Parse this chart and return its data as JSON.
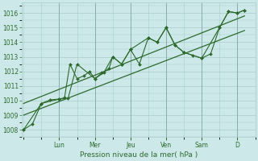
{
  "background_color": "#cce8e8",
  "grid_color": "#aacccc",
  "line_color": "#2d6a2d",
  "xlabel": "Pression niveau de la mer( hPa )",
  "ylim": [
    1007.5,
    1016.7
  ],
  "yticks": [
    1008,
    1009,
    1010,
    1011,
    1012,
    1013,
    1014,
    1015,
    1016
  ],
  "day_labels": [
    "Lun",
    "Mer",
    "Jeu",
    "Ven",
    "Sam",
    "D"
  ],
  "day_x": [
    2,
    4,
    6,
    8,
    10,
    12
  ],
  "xlim": [
    -0.1,
    13.0
  ],
  "line1_x": [
    0,
    0.5,
    1.0,
    1.5,
    2.0,
    2.3,
    2.6,
    3.0,
    3.4,
    3.7,
    4.0,
    4.4,
    4.8,
    5.0,
    5.5,
    6.0,
    6.5,
    7.0,
    7.5,
    8.0,
    8.5,
    9.0,
    9.5,
    10.0,
    10.5,
    11.0,
    11.5,
    12.0,
    12.4
  ],
  "line1_y": [
    1008.0,
    1008.4,
    1009.8,
    1010.05,
    1010.1,
    1010.2,
    1012.5,
    1011.5,
    1011.7,
    1012.0,
    1011.5,
    1011.9,
    1012.2,
    1013.0,
    1012.5,
    1013.5,
    1012.5,
    1014.3,
    1014.0,
    1015.0,
    1013.8,
    1013.3,
    1013.1,
    1012.9,
    1013.2,
    1015.0,
    1016.1,
    1016.0,
    1016.2
  ],
  "line2_x": [
    0,
    1.0,
    2.0,
    2.5,
    3.0,
    4.0,
    4.5,
    5.0,
    5.5,
    6.0,
    7.0,
    7.5,
    8.0,
    8.5,
    9.0,
    10.0,
    11.0,
    11.5,
    12.0,
    12.4
  ],
  "line2_y": [
    1008.0,
    1009.8,
    1010.1,
    1010.15,
    1012.5,
    1011.5,
    1011.9,
    1013.0,
    1012.5,
    1013.5,
    1014.3,
    1014.0,
    1015.0,
    1013.8,
    1013.3,
    1012.9,
    1015.0,
    1016.1,
    1016.0,
    1016.2
  ],
  "trend1_x": [
    0,
    12.4
  ],
  "trend1_y": [
    1009.0,
    1014.8
  ],
  "trend2_x": [
    0,
    12.4
  ],
  "trend2_y": [
    1009.8,
    1015.8
  ]
}
